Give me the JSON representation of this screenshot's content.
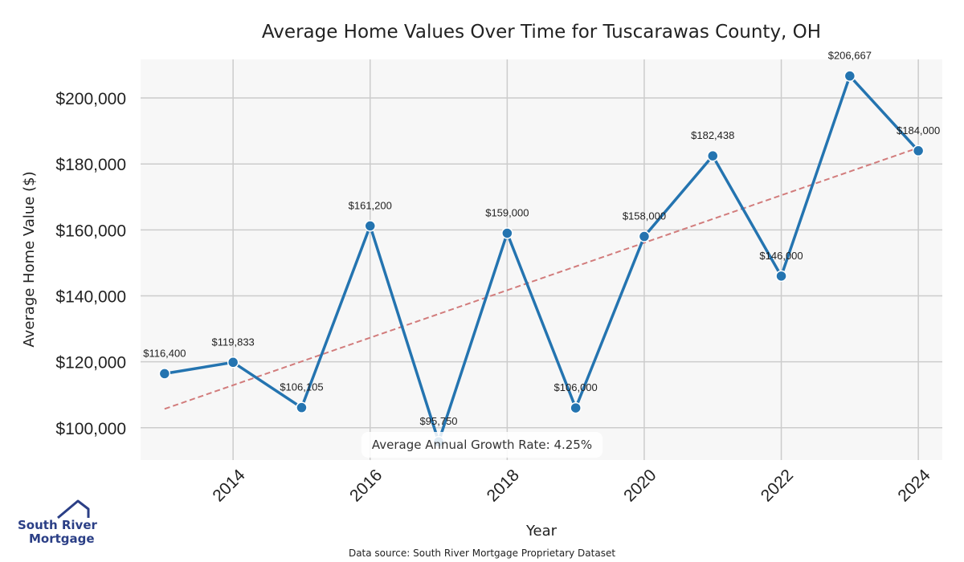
{
  "chart_data": {
    "type": "line",
    "title": "Average Home Values Over Time for Tuscarawas County, OH",
    "xlabel": "Year",
    "ylabel": "Average Home Value ($)",
    "x": [
      2013,
      2014,
      2015,
      2016,
      2017,
      2018,
      2019,
      2020,
      2021,
      2022,
      2023,
      2024
    ],
    "values": [
      116400,
      119833,
      106105,
      161200,
      95750,
      159000,
      106000,
      158000,
      182438,
      146000,
      206667,
      184000
    ],
    "data_labels": [
      "$116,400",
      "$119,833",
      "$106,105",
      "$161,200",
      "$95,750",
      "$159,000",
      "$106,000",
      "$158,000",
      "$182,438",
      "$146,000",
      "$206,667",
      "$184,000"
    ],
    "x_ticks": [
      "2014",
      "2016",
      "2018",
      "2020",
      "2022",
      "2024"
    ],
    "x_tick_values": [
      2014,
      2016,
      2018,
      2020,
      2022,
      2024
    ],
    "y_ticks": [
      "$100,000",
      "$120,000",
      "$140,000",
      "$160,000",
      "$180,000",
      "$200,000"
    ],
    "y_tick_values": [
      100000,
      120000,
      140000,
      160000,
      180000,
      200000
    ],
    "xlim": [
      2012.65,
      2024.35
    ],
    "ylim": [
      90200,
      211700
    ],
    "trendline": {
      "x": [
        2013,
        2024
      ],
      "y": [
        105700,
        184900
      ]
    },
    "annotation": "Average Annual Growth Rate: 4.25%",
    "grid": true,
    "colors": {
      "line": "#2474b0",
      "trend": "#d27c7c",
      "plot_bg": "#f7f7f7",
      "grid": "#cccccc"
    }
  },
  "footer": {
    "source": "Data source: South River Mortgage Proprietary Dataset"
  },
  "logo": {
    "line1": "South River",
    "line2": "Mortgage",
    "icon": "house-roof-icon",
    "color": "#2b3f86"
  }
}
